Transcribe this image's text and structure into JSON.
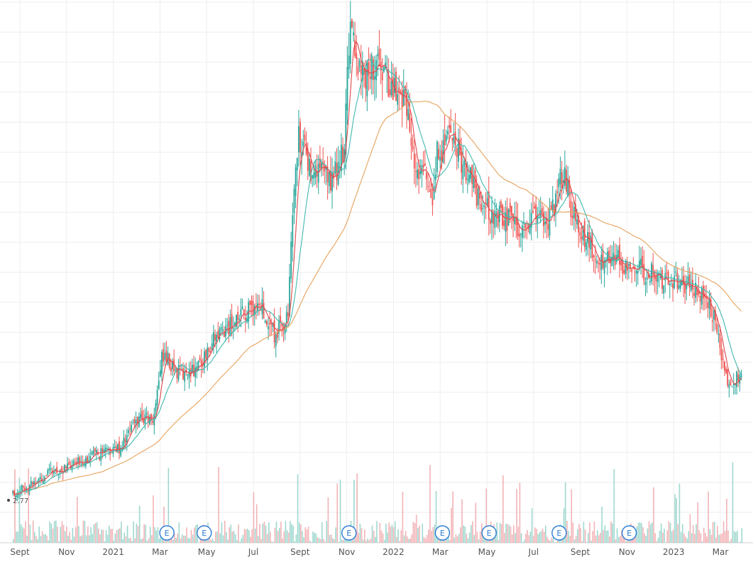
{
  "chart_data": {
    "type": "candlestick",
    "x_axis_labels": [
      "Sept",
      "Nov",
      "2021",
      "Mar",
      "May",
      "Jul",
      "Sept",
      "Nov",
      "2022",
      "Mar",
      "May",
      "Jul",
      "Sept",
      "Nov",
      "2023",
      "Mar"
    ],
    "price_marker": "2.77",
    "earnings_marker_label": "E",
    "earnings_dates_index": [
      3.3,
      4.1,
      7.2,
      9.2,
      10.2,
      11.7,
      13.2
    ],
    "grid": true,
    "colors": {
      "up": "#26a69a",
      "down": "#ef5350",
      "ma_fast": "#e0474b",
      "ma_mid": "#41b8ae",
      "ma_slow": "#e6a25c",
      "volume_up": "#9fd8cf",
      "volume_down": "#f2b3b6",
      "earnings": "#2a7bd4"
    },
    "price_path": [
      [
        0,
        2.9
      ],
      [
        0.4,
        3.1
      ],
      [
        0.8,
        3.3
      ],
      [
        1.2,
        3.4
      ],
      [
        1.6,
        3.6
      ],
      [
        2.0,
        3.7
      ],
      [
        2.3,
        3.8
      ],
      [
        2.7,
        4.4
      ],
      [
        3.0,
        4.3
      ],
      [
        3.2,
        5.6
      ],
      [
        3.6,
        5.2
      ],
      [
        4.0,
        5.4
      ],
      [
        4.3,
        5.9
      ],
      [
        4.7,
        6.2
      ],
      [
        5.0,
        6.4
      ],
      [
        5.3,
        6.6
      ],
      [
        5.6,
        6.0
      ],
      [
        5.9,
        6.3
      ],
      [
        6.0,
        8.5
      ],
      [
        6.1,
        9.8
      ],
      [
        6.4,
        9.2
      ],
      [
        6.8,
        9.0
      ],
      [
        7.1,
        9.5
      ],
      [
        7.2,
        11.8
      ],
      [
        7.5,
        11.0
      ],
      [
        7.9,
        11.2
      ],
      [
        8.1,
        10.8
      ],
      [
        8.4,
        10.6
      ],
      [
        8.6,
        9.4
      ],
      [
        8.9,
        9.0
      ],
      [
        9.0,
        8.5
      ],
      [
        9.1,
        9.6
      ],
      [
        9.4,
        9.8
      ],
      [
        9.7,
        9.2
      ],
      [
        10.0,
        8.5
      ],
      [
        10.3,
        8.3
      ],
      [
        10.6,
        8.2
      ],
      [
        10.9,
        8.0
      ],
      [
        11.2,
        8.4
      ],
      [
        11.5,
        8.2
      ],
      [
        11.8,
        9.2
      ],
      [
        12.0,
        8.3
      ],
      [
        12.3,
        7.8
      ],
      [
        12.6,
        7.5
      ],
      [
        13.0,
        7.4
      ],
      [
        13.4,
        7.3
      ],
      [
        13.8,
        7.1
      ],
      [
        14.2,
        7.0
      ],
      [
        14.6,
        6.9
      ],
      [
        15.0,
        6.4
      ],
      [
        15.3,
        5.0
      ],
      [
        15.6,
        5.2
      ]
    ]
  }
}
